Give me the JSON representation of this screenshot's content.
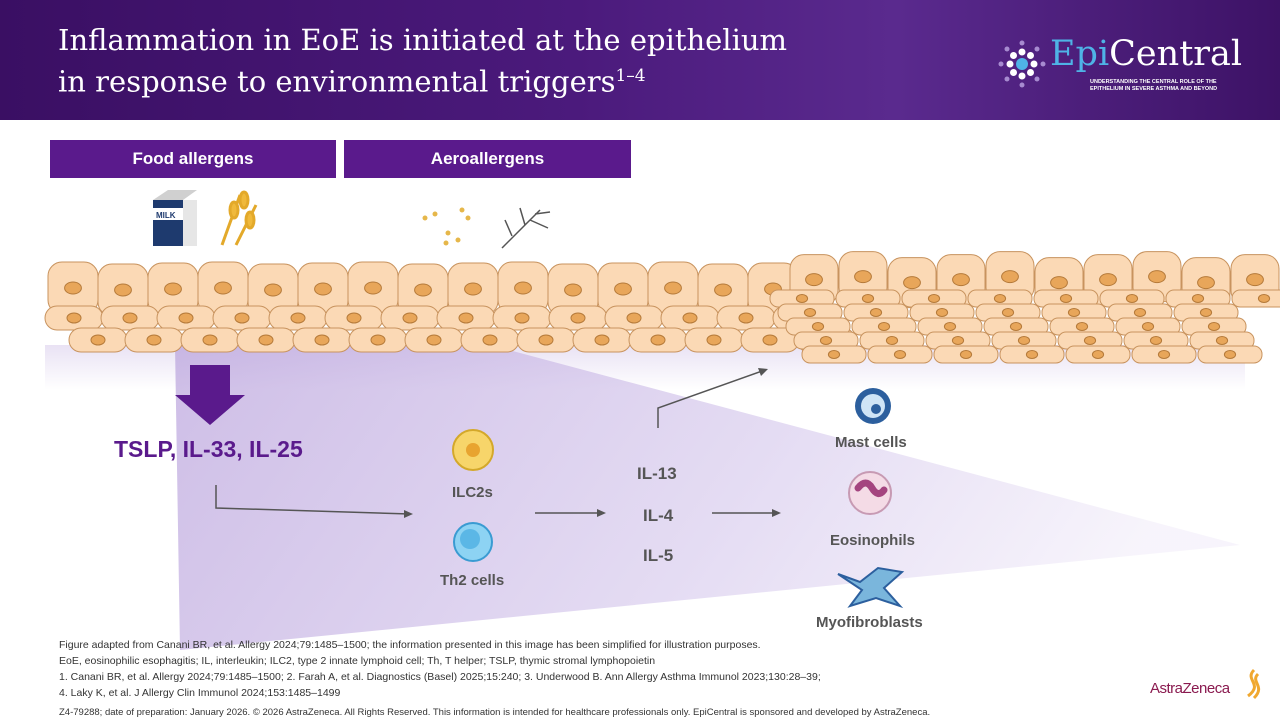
{
  "header": {
    "title_line1": "Inflammation in EoE is initiated at the epithelium",
    "title_line2": "in response to environmental triggers",
    "title_sup": "1–4"
  },
  "logo": {
    "epi": "Epi",
    "central": "Central",
    "tagline": "UNDERSTANDING THE CENTRAL ROLE OF THE EPITHELIUM IN SEVERE ASTHMA AND BEYOND"
  },
  "categories": {
    "food": "Food allergens",
    "aero": "Aeroallergens"
  },
  "milk_label": "MILK",
  "cytokines": "TSLP, IL-33, IL-25",
  "cells": {
    "ilc2": "ILC2s",
    "th2": "Th2 cells",
    "mast": "Mast cells",
    "eos": "Eosinophils",
    "myo": "Myofibroblasts"
  },
  "interleukins": [
    "IL-13",
    "IL-4",
    "IL-5"
  ],
  "colors": {
    "purple": "#5a1a8c",
    "cell_fill": "#fbd9b5",
    "cell_stroke": "#c8935e",
    "nucleus": "#e8a65a"
  },
  "footer": {
    "line1": "Figure adapted from Canani BR, et al. Allergy 2024;79:1485–1500; the information presented in this image has been simplified for illustration purposes.",
    "line2": "EoE, eosinophilic esophagitis; IL, interleukin; ILC2, type 2 innate lymphoid cell; Th, T helper; TSLP, thymic stromal lymphopoietin",
    "line3": "1. Canani BR, et al. Allergy 2024;79:1485–1500; 2. Farah A, et al. Diagnostics (Basel) 2025;15:240; 3. Underwood B. Ann Allergy Asthma Immunol 2023;130:28–39;",
    "line4": "4. Laky K, et al. J Allergy Clin Immunol 2024;153:1485–1499",
    "line5": "Z4-79288; date of preparation: January 2026. © 2026 AstraZeneca. All Rights Reserved. This information is intended for healthcare professionals only. EpiCentral is sponsored and developed by AstraZeneca."
  },
  "brand": "AstraZeneca"
}
